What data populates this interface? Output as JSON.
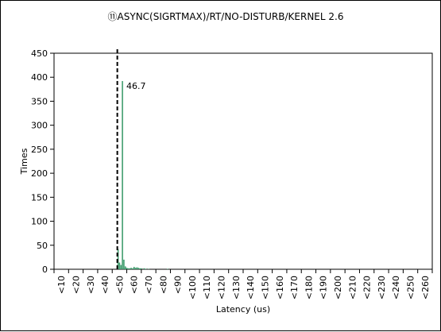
{
  "chart_data": {
    "type": "bar",
    "title": "⑪ASYNC(SIGRTMAX)/RT/NO-DISTURB/KERNEL 2.6",
    "xlabel": "Latency (us)",
    "ylabel": "Times",
    "ylim": [
      0,
      450
    ],
    "yticks": [
      0,
      50,
      100,
      150,
      200,
      250,
      300,
      350,
      400,
      450
    ],
    "xlim": [
      0,
      260
    ],
    "xtick_labels": [
      "<10",
      "<20",
      "<30",
      "<40",
      "<50",
      "<60",
      "<70",
      "<80",
      "<90",
      "<100",
      "<110",
      "<120",
      "<130",
      "<140",
      "<150",
      "<160",
      "<170",
      "<180",
      "<190",
      "<200",
      "<210",
      "<220",
      "<230",
      "<240",
      "<250",
      "<260"
    ],
    "grid": false,
    "bar_color": "#3a9a6a",
    "bars": [
      {
        "x": 44,
        "value": 42
      },
      {
        "x": 45,
        "value": 14
      },
      {
        "x": 46,
        "value": 9
      },
      {
        "x": 47,
        "value": 392
      },
      {
        "x": 48,
        "value": 20
      },
      {
        "x": 49,
        "value": 6
      },
      {
        "x": 50,
        "value": 3
      },
      {
        "x": 51,
        "value": 2
      },
      {
        "x": 52,
        "value": 2
      },
      {
        "x": 53,
        "value": 3
      },
      {
        "x": 54,
        "value": 2
      },
      {
        "x": 55,
        "value": 5
      },
      {
        "x": 56,
        "value": 3
      },
      {
        "x": 57,
        "value": 4
      },
      {
        "x": 58,
        "value": 3
      },
      {
        "x": 59,
        "value": 2
      },
      {
        "x": 60,
        "value": 2
      },
      {
        "x": 62,
        "value": 2
      },
      {
        "x": 63,
        "value": 1
      },
      {
        "x": 65,
        "value": 1
      },
      {
        "x": 78,
        "value": 1
      }
    ],
    "reference_line": {
      "x": 43.5,
      "style": "dashed",
      "color": "#000000"
    },
    "annotation": {
      "text": "46.7",
      "x": 47,
      "y": 392
    }
  }
}
